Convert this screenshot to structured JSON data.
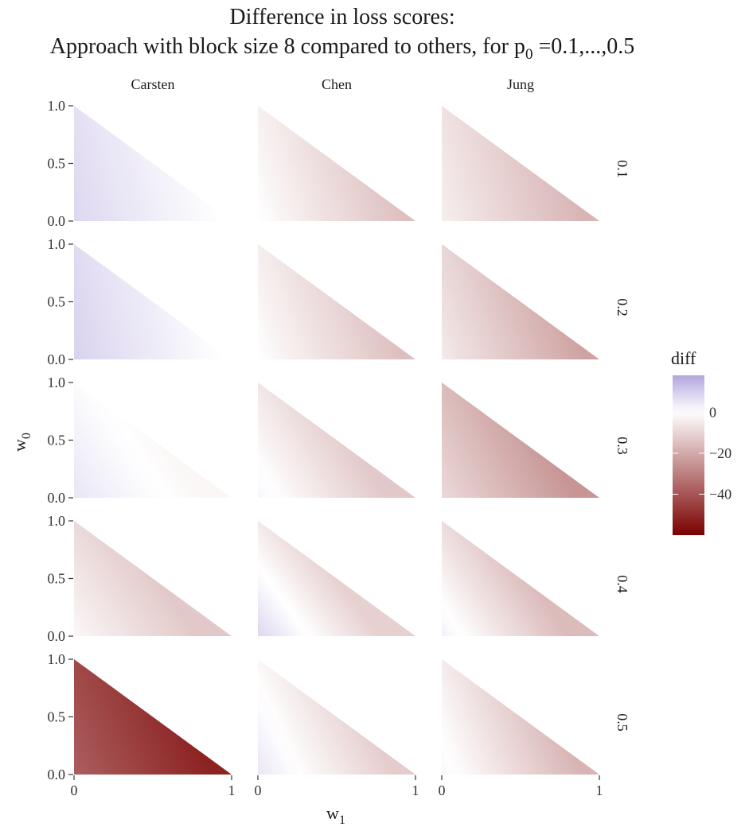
{
  "chart_data": {
    "type": "heatmap",
    "title_line1": "Difference in loss scores:",
    "title_line2_main": "Approach with block size 8 compared to others, for p",
    "title_line2_sub": "0",
    "title_line2_end": " =0.1,...,0.5",
    "xlabel_main": "w",
    "xlabel_sub": "1",
    "ylabel_main": "w",
    "ylabel_sub": "0",
    "columns": [
      "Carsten",
      "Chen",
      "Jung"
    ],
    "rows": [
      "0.1",
      "0.2",
      "0.3",
      "0.4",
      "0.5"
    ],
    "x_ticks": [
      0,
      1
    ],
    "x_tick_labels": [
      "0",
      "1"
    ],
    "y_ticks": [
      0.0,
      0.5,
      1.0
    ],
    "y_tick_labels": [
      "0.0",
      "0.5",
      "1.0"
    ],
    "xlim": [
      0,
      1
    ],
    "ylim": [
      0,
      1
    ],
    "legend": {
      "title": "diff",
      "position": "right",
      "range": [
        -60,
        18
      ],
      "ticks": [
        0,
        -20,
        -40
      ],
      "tick_labels": [
        "0",
        "−20",
        "−40"
      ],
      "colors": {
        "low": "#7a0000",
        "mid": "#ffffff",
        "high": "#b3a6dd"
      }
    },
    "grid": false,
    "panels": [
      {
        "row": "0.1",
        "col": "Carsten",
        "d_origin": 8,
        "d_x1": 0,
        "d_y1": 5
      },
      {
        "row": "0.1",
        "col": "Chen",
        "d_origin": 0,
        "d_x1": -15,
        "d_y1": -6
      },
      {
        "row": "0.1",
        "col": "Jung",
        "d_origin": -4,
        "d_x1": -18,
        "d_y1": -9
      },
      {
        "row": "0.2",
        "col": "Carsten",
        "d_origin": 9,
        "d_x1": 0,
        "d_y1": 6
      },
      {
        "row": "0.2",
        "col": "Chen",
        "d_origin": 0,
        "d_x1": -15,
        "d_y1": -7
      },
      {
        "row": "0.2",
        "col": "Jung",
        "d_origin": -5,
        "d_x1": -22,
        "d_y1": -13
      },
      {
        "row": "0.3",
        "col": "Carsten",
        "d_origin": 5,
        "d_x1": -2,
        "d_y1": -1
      },
      {
        "row": "0.3",
        "col": "Chen",
        "d_origin": 2,
        "d_x1": -13,
        "d_y1": -10
      },
      {
        "row": "0.3",
        "col": "Jung",
        "d_origin": -9,
        "d_x1": -25,
        "d_y1": -20
      },
      {
        "row": "0.4",
        "col": "Carsten",
        "d_origin": -2,
        "d_x1": -13,
        "d_y1": -12
      },
      {
        "row": "0.4",
        "col": "Chen",
        "d_origin": 8,
        "d_x1": -11,
        "d_y1": -11
      },
      {
        "row": "0.4",
        "col": "Jung",
        "d_origin": 3,
        "d_x1": -16,
        "d_y1": -14
      },
      {
        "row": "0.5",
        "col": "Carsten",
        "d_origin": -38,
        "d_x1": -52,
        "d_y1": -46
      },
      {
        "row": "0.5",
        "col": "Chen",
        "d_origin": 5,
        "d_x1": -12,
        "d_y1": -6
      },
      {
        "row": "0.5",
        "col": "Jung",
        "d_origin": 2,
        "d_x1": -18,
        "d_y1": -9
      }
    ]
  }
}
